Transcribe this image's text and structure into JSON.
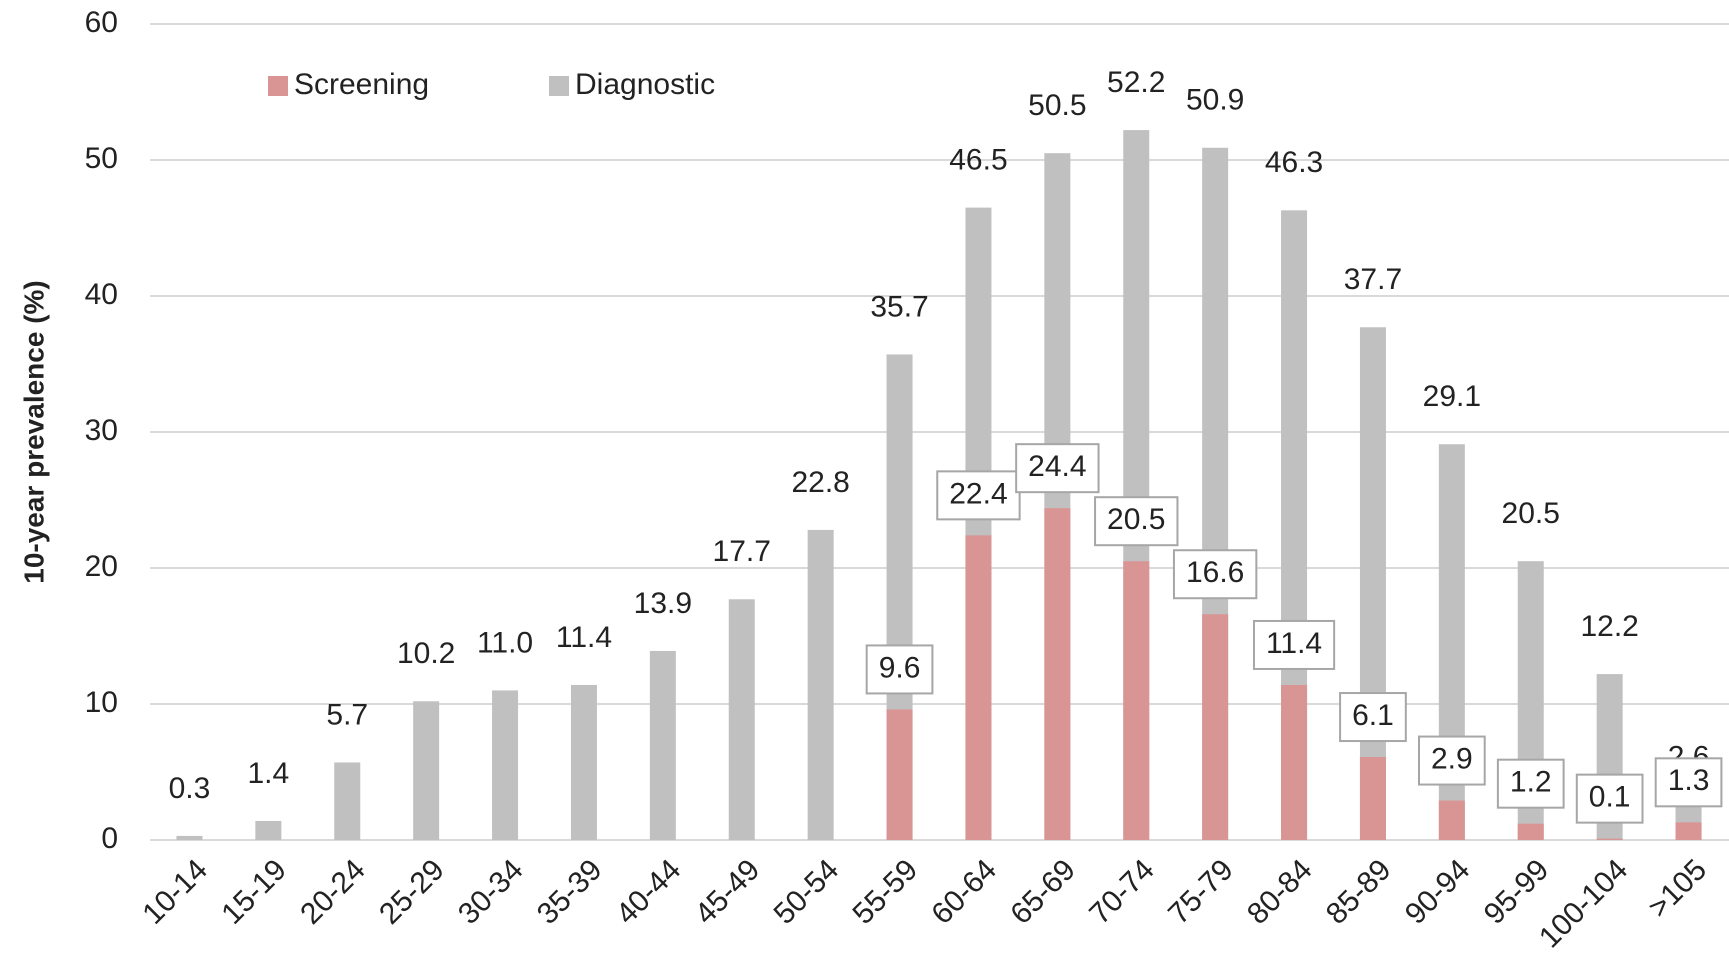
{
  "chart_data": {
    "type": "bar",
    "barmode": "overlay",
    "ylabel": "10-year prevalence (%)",
    "categories": [
      "10-14",
      "15-19",
      "20-24",
      "25-29",
      "30-34",
      "35-39",
      "40-44",
      "45-49",
      "50-54",
      "55-59",
      "60-64",
      "65-69",
      "70-74",
      "75-79",
      "80-84",
      "85-89",
      "90-94",
      "95-99",
      "100-104",
      ">105"
    ],
    "series": [
      {
        "name": "Diagnostic",
        "color": "#c0c0c0",
        "values": [
          0.3,
          1.4,
          5.7,
          10.2,
          11.0,
          11.4,
          13.9,
          17.7,
          22.8,
          35.7,
          46.5,
          50.5,
          52.2,
          50.9,
          46.3,
          37.7,
          29.1,
          20.5,
          12.2,
          2.6
        ],
        "value_labels": [
          "0.3",
          "1.4",
          "5.7",
          "10.2",
          "11.0",
          "11.4",
          "13.9",
          "17.7",
          "22.8",
          "35.7",
          "46.5",
          "50.5",
          "52.2",
          "50.9",
          "46.3",
          "37.7",
          "29.1",
          "20.5",
          "12.2",
          "2.6"
        ]
      },
      {
        "name": "Screening",
        "color": "#d99594",
        "values": [
          null,
          null,
          null,
          null,
          null,
          null,
          null,
          null,
          null,
          9.6,
          22.4,
          24.4,
          20.5,
          16.6,
          11.4,
          6.1,
          2.9,
          1.2,
          0.1,
          1.3
        ]
      }
    ],
    "legend": "top-left",
    "ylim": [
      0,
      60
    ],
    "yticks": [
      0,
      10,
      20,
      30,
      40,
      50,
      60
    ],
    "grid": true
  }
}
